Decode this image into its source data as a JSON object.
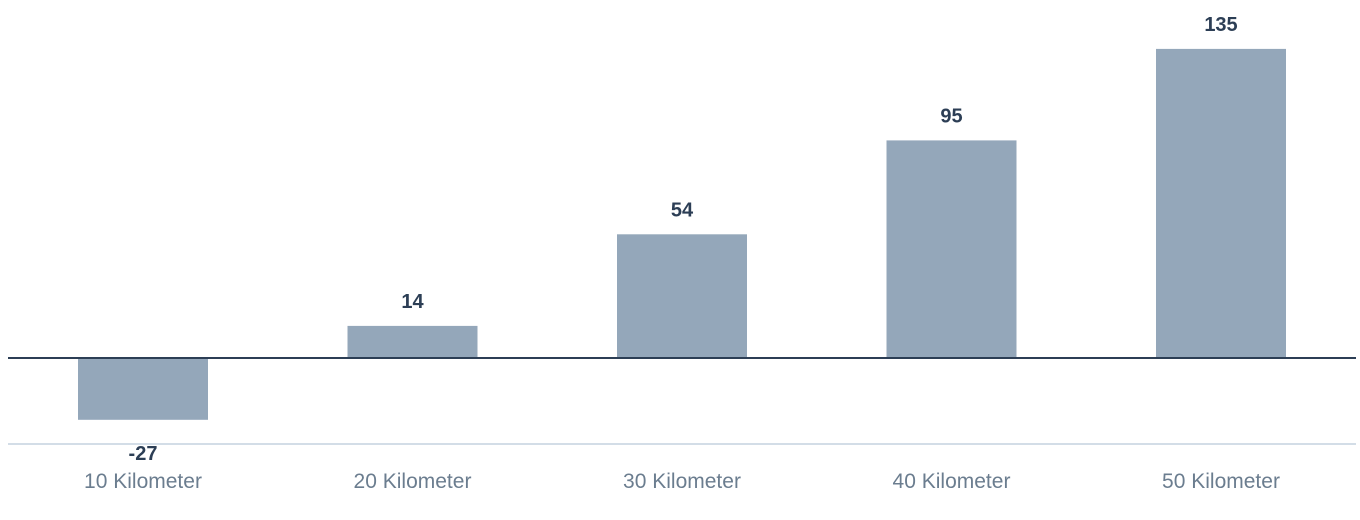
{
  "chart_data": {
    "type": "bar",
    "categories": [
      "10 Kilometer",
      "20 Kilometer",
      "30 Kilometer",
      "40 Kilometer",
      "50 Kilometer"
    ],
    "values": [
      -27,
      14,
      54,
      95,
      135
    ],
    "value_labels": [
      "-27",
      "14",
      "54",
      "95",
      "135"
    ],
    "title": "",
    "xlabel": "",
    "ylabel": "",
    "ylim": [
      -27,
      135
    ],
    "grid": false,
    "legend": "none",
    "colors": {
      "bar": "#94a7ba",
      "value_label": "#2c3e55",
      "zero_line": "#2c3e55",
      "axis_line": "#d3dde7",
      "category_label": "#6b7d8f"
    }
  }
}
